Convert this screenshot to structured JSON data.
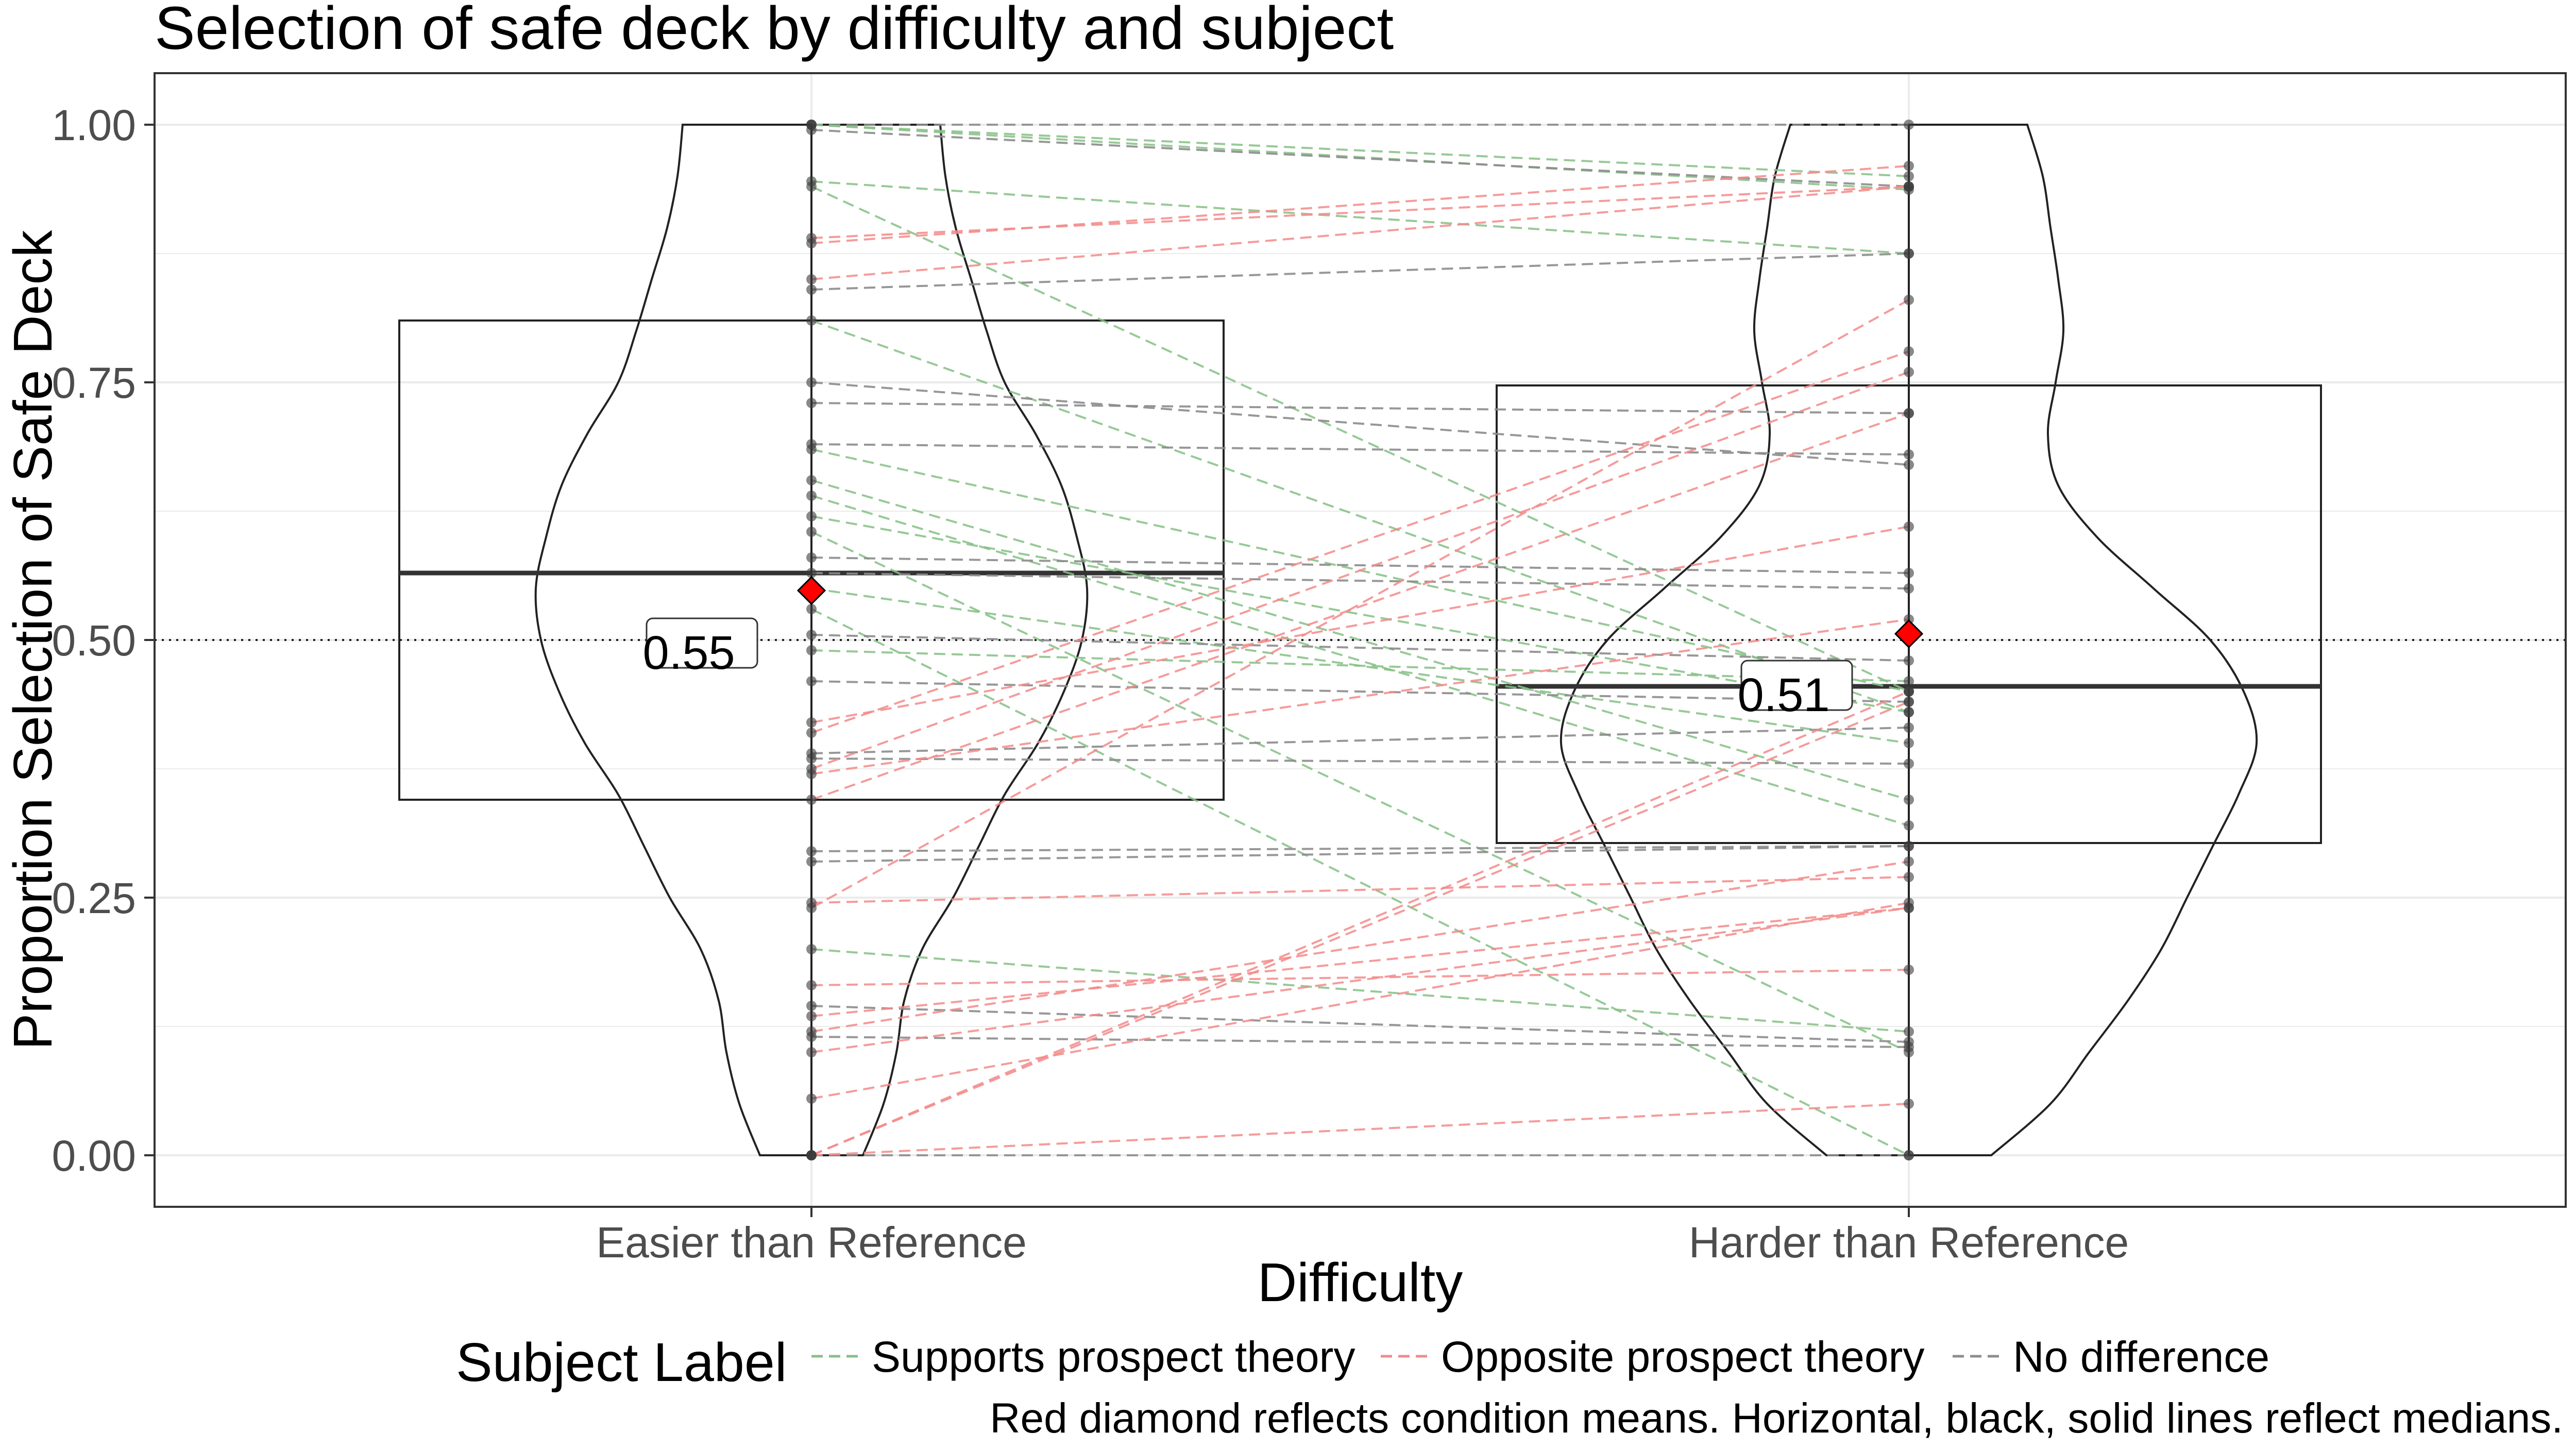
{
  "chart_data": {
    "type": "violin-box-paired",
    "title": "Selection of safe deck by difficulty and subject",
    "xlabel": "Difficulty",
    "ylabel": "Proportion Selection of Safe Deck",
    "caption": "Red diamond reflects condition means. Horizontal, black, solid lines reflect medians.",
    "categories": [
      "Easier than Reference",
      "Harder than Reference"
    ],
    "ylim": [
      -0.05,
      1.05
    ],
    "yticks": [
      0,
      0.25,
      0.5,
      0.75,
      1.0
    ],
    "ytick_labels": [
      "0.00",
      "0.25",
      "0.50",
      "0.75",
      "1.00"
    ],
    "grid": true,
    "reference_line": 0.5,
    "legend": {
      "title": "Subject Label",
      "position": "bottom",
      "entries": [
        {
          "key": "supports",
          "label": "Supports prospect theory",
          "color": "#86c086"
        },
        {
          "key": "opposite",
          "label": "Opposite prospect theory",
          "color": "#f48a8a"
        },
        {
          "key": "nodiff",
          "label": "No difference",
          "color": "#8c8c8c"
        }
      ]
    },
    "summary": [
      {
        "category": "Easier than Reference",
        "q1": 0.345,
        "median": 0.565,
        "q3": 0.81,
        "mean": 0.548,
        "mean_label": "0.55"
      },
      {
        "category": "Harder than Reference",
        "q1": 0.303,
        "median": 0.455,
        "q3": 0.747,
        "mean": 0.506,
        "mean_label": "0.51"
      }
    ],
    "violins": [
      {
        "category": "Easier than Reference",
        "y": [
          0.0,
          0.05,
          0.1,
          0.15,
          0.2,
          0.25,
          0.3,
          0.35,
          0.4,
          0.45,
          0.5,
          0.55,
          0.6,
          0.65,
          0.7,
          0.75,
          0.8,
          0.85,
          0.9,
          0.95,
          1.0
        ],
        "width": [
          0.2,
          0.28,
          0.33,
          0.36,
          0.43,
          0.55,
          0.65,
          0.75,
          0.88,
          0.98,
          1.05,
          1.07,
          1.03,
          0.97,
          0.87,
          0.75,
          0.68,
          0.62,
          0.56,
          0.52,
          0.5
        ]
      },
      {
        "category": "Harder than Reference",
        "y": [
          0.0,
          0.05,
          0.1,
          0.15,
          0.2,
          0.25,
          0.3,
          0.35,
          0.4,
          0.45,
          0.5,
          0.55,
          0.6,
          0.65,
          0.7,
          0.75,
          0.8,
          0.85,
          0.9,
          0.95,
          1.0
        ],
        "width": [
          0.32,
          0.55,
          0.7,
          0.85,
          0.98,
          1.08,
          1.18,
          1.28,
          1.35,
          1.3,
          1.17,
          0.95,
          0.73,
          0.58,
          0.54,
          0.57,
          0.6,
          0.58,
          0.55,
          0.52,
          0.46
        ]
      }
    ],
    "pairs": [
      {
        "easier": 1.0,
        "harder": 1.0,
        "label": "nodiff"
      },
      {
        "easier": 1.0,
        "harder": 0.95,
        "label": "supports"
      },
      {
        "easier": 1.0,
        "harder": 0.937,
        "label": "supports"
      },
      {
        "easier": 0.995,
        "harder": 0.94,
        "label": "nodiff"
      },
      {
        "easier": 0.945,
        "harder": 0.875,
        "label": "supports"
      },
      {
        "easier": 0.94,
        "harder": 0.45,
        "label": "supports"
      },
      {
        "easier": 0.89,
        "harder": 0.94,
        "label": "opposite"
      },
      {
        "easier": 0.885,
        "harder": 0.96,
        "label": "opposite"
      },
      {
        "easier": 0.85,
        "harder": 0.94,
        "label": "opposite"
      },
      {
        "easier": 0.84,
        "harder": 0.875,
        "label": "nodiff"
      },
      {
        "easier": 0.81,
        "harder": 0.43,
        "label": "supports"
      },
      {
        "easier": 0.75,
        "harder": 0.67,
        "label": "nodiff"
      },
      {
        "easier": 0.73,
        "harder": 0.72,
        "label": "nodiff"
      },
      {
        "easier": 0.69,
        "harder": 0.68,
        "label": "nodiff"
      },
      {
        "easier": 0.685,
        "harder": 0.45,
        "label": "supports"
      },
      {
        "easier": 0.655,
        "harder": 0.345,
        "label": "supports"
      },
      {
        "easier": 0.64,
        "harder": 0.32,
        "label": "supports"
      },
      {
        "easier": 0.62,
        "harder": 0.43,
        "label": "supports"
      },
      {
        "easier": 0.605,
        "harder": 0.1,
        "label": "supports"
      },
      {
        "easier": 0.58,
        "harder": 0.565,
        "label": "nodiff"
      },
      {
        "easier": 0.565,
        "harder": 0.55,
        "label": "nodiff"
      },
      {
        "easier": 0.55,
        "harder": 0.4,
        "label": "supports"
      },
      {
        "easier": 0.53,
        "harder": 0.0,
        "label": "supports"
      },
      {
        "easier": 0.505,
        "harder": 0.48,
        "label": "nodiff"
      },
      {
        "easier": 0.49,
        "harder": 0.46,
        "label": "supports"
      },
      {
        "easier": 0.46,
        "harder": 0.44,
        "label": "nodiff"
      },
      {
        "easier": 0.42,
        "harder": 0.61,
        "label": "opposite"
      },
      {
        "easier": 0.41,
        "harder": 0.78,
        "label": "opposite"
      },
      {
        "easier": 0.39,
        "harder": 0.415,
        "label": "nodiff"
      },
      {
        "easier": 0.385,
        "harder": 0.38,
        "label": "nodiff"
      },
      {
        "easier": 0.375,
        "harder": 0.76,
        "label": "opposite"
      },
      {
        "easier": 0.37,
        "harder": 0.52,
        "label": "opposite"
      },
      {
        "easier": 0.345,
        "harder": 0.72,
        "label": "opposite"
      },
      {
        "easier": 0.295,
        "harder": 0.3,
        "label": "nodiff"
      },
      {
        "easier": 0.285,
        "harder": 0.3,
        "label": "nodiff"
      },
      {
        "easier": 0.245,
        "harder": 0.27,
        "label": "opposite"
      },
      {
        "easier": 0.24,
        "harder": 0.83,
        "label": "opposite"
      },
      {
        "easier": 0.2,
        "harder": 0.12,
        "label": "supports"
      },
      {
        "easier": 0.165,
        "harder": 0.18,
        "label": "opposite"
      },
      {
        "easier": 0.145,
        "harder": 0.11,
        "label": "nodiff"
      },
      {
        "easier": 0.135,
        "harder": 0.24,
        "label": "opposite"
      },
      {
        "easier": 0.12,
        "harder": 0.285,
        "label": "opposite"
      },
      {
        "easier": 0.115,
        "harder": 0.105,
        "label": "nodiff"
      },
      {
        "easier": 0.1,
        "harder": 0.24,
        "label": "opposite"
      },
      {
        "easier": 0.055,
        "harder": 0.245,
        "label": "opposite"
      },
      {
        "easier": 0.0,
        "harder": 0.0,
        "label": "nodiff"
      },
      {
        "easier": 0.0,
        "harder": 0.05,
        "label": "opposite"
      },
      {
        "easier": 0.0,
        "harder": 0.44,
        "label": "opposite"
      },
      {
        "easier": 0.0,
        "harder": 0.45,
        "label": "opposite"
      }
    ]
  }
}
